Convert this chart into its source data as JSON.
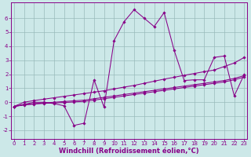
{
  "bg_color": "#cce8e8",
  "line_color": "#880088",
  "grid_color": "#99bbbb",
  "xlabel": "Windchill (Refroidissement éolien,°C)",
  "xlim": [
    -0.3,
    23.3
  ],
  "ylim": [
    -2.6,
    7.1
  ],
  "xtick_vals": [
    0,
    1,
    2,
    3,
    4,
    5,
    6,
    7,
    8,
    9,
    10,
    11,
    12,
    13,
    14,
    15,
    16,
    17,
    18,
    19,
    20,
    21,
    22,
    23
  ],
  "ytick_vals": [
    -2,
    -1,
    0,
    1,
    2,
    3,
    4,
    5,
    6
  ],
  "lines": [
    {
      "x": [
        0,
        1,
        2,
        3,
        4,
        5,
        6,
        7,
        8,
        9,
        10,
        11,
        12,
        13,
        14,
        15,
        16,
        17,
        18,
        19,
        20,
        21,
        22,
        23
      ],
      "y": [
        -0.3,
        0.0,
        0.12,
        0.22,
        0.32,
        0.42,
        0.52,
        0.62,
        0.72,
        0.82,
        0.95,
        1.08,
        1.2,
        1.35,
        1.5,
        1.65,
        1.78,
        1.92,
        2.05,
        2.18,
        2.3,
        2.55,
        2.8,
        3.2
      ]
    },
    {
      "x": [
        0,
        1,
        2,
        3,
        4,
        5,
        6,
        7,
        8,
        9,
        10,
        11,
        12,
        13,
        14,
        15,
        16,
        17,
        18,
        19,
        20,
        21,
        22,
        23
      ],
      "y": [
        -0.3,
        -0.18,
        -0.1,
        -0.05,
        0.0,
        0.05,
        0.1,
        0.15,
        0.25,
        0.35,
        0.45,
        0.55,
        0.65,
        0.75,
        0.85,
        0.95,
        1.05,
        1.15,
        1.25,
        1.35,
        1.45,
        1.55,
        1.7,
        1.9
      ]
    },
    {
      "x": [
        0,
        1,
        2,
        3,
        4,
        5,
        6,
        7,
        8,
        9,
        10,
        11,
        12,
        13,
        14,
        15,
        16,
        17,
        18,
        19,
        20,
        21,
        22,
        23
      ],
      "y": [
        -0.3,
        -0.2,
        -0.13,
        -0.08,
        -0.05,
        -0.02,
        0.02,
        0.06,
        0.15,
        0.25,
        0.35,
        0.45,
        0.55,
        0.65,
        0.75,
        0.85,
        0.95,
        1.05,
        1.15,
        1.25,
        1.35,
        1.45,
        1.6,
        1.8
      ]
    },
    {
      "x": [
        0,
        1,
        2,
        3,
        4,
        5,
        6,
        7,
        8,
        9,
        10,
        11,
        12,
        13,
        14,
        15,
        16,
        17,
        18,
        19,
        20,
        21,
        22,
        23
      ],
      "y": [
        -0.3,
        -0.15,
        0.0,
        0.0,
        -0.1,
        -0.25,
        -1.65,
        -1.5,
        1.6,
        -0.35,
        4.4,
        5.75,
        6.6,
        6.0,
        5.4,
        6.4,
        3.7,
        1.55,
        1.6,
        1.6,
        3.2,
        3.3,
        0.45,
        2.0
      ]
    }
  ],
  "tick_fontsize": 5.0,
  "axis_fontsize": 6.0
}
